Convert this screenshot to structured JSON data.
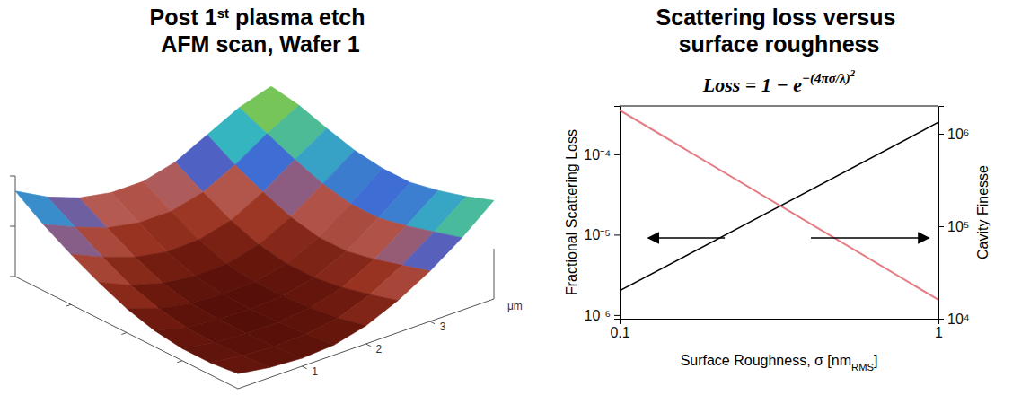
{
  "chart_data": [
    {
      "type": "surface",
      "title": "Post 1st plasma etch AFM scan, Wafer 1",
      "x_label": "μm",
      "x": [
        0,
        0.5,
        1,
        1.5,
        2,
        2.5,
        3,
        3.5,
        4
      ],
      "y": [
        0,
        0.5,
        1,
        1.5,
        2,
        2.5,
        3,
        3.5,
        4
      ],
      "z": [
        [
          0.15,
          0.1,
          0.08,
          0.1,
          0.18,
          0.32,
          0.5,
          0.72,
          0.98
        ],
        [
          0.12,
          0.08,
          0.06,
          0.07,
          0.12,
          0.24,
          0.42,
          0.64,
          0.88
        ],
        [
          0.12,
          0.07,
          0.05,
          0.05,
          0.08,
          0.17,
          0.34,
          0.56,
          0.8
        ],
        [
          0.16,
          0.08,
          0.05,
          0.04,
          0.06,
          0.13,
          0.28,
          0.5,
          0.74
        ],
        [
          0.24,
          0.13,
          0.07,
          0.05,
          0.06,
          0.13,
          0.28,
          0.5,
          0.74
        ],
        [
          0.36,
          0.22,
          0.13,
          0.09,
          0.1,
          0.18,
          0.34,
          0.56,
          0.78
        ],
        [
          0.5,
          0.36,
          0.25,
          0.19,
          0.2,
          0.28,
          0.45,
          0.66,
          0.86
        ],
        [
          0.66,
          0.52,
          0.4,
          0.34,
          0.34,
          0.42,
          0.58,
          0.78,
          0.95
        ],
        [
          0.85,
          0.68,
          0.56,
          0.5,
          0.5,
          0.58,
          0.74,
          0.9,
          1.0
        ]
      ],
      "xlim": [
        0,
        4
      ],
      "xticks": [
        1,
        2,
        3
      ],
      "ylim": [
        0,
        4
      ],
      "yticks": [
        1,
        2,
        3
      ],
      "zlim": [
        0,
        1
      ],
      "zticks": [
        0,
        0.5,
        1
      ],
      "tick_labels": "x"
    },
    {
      "type": "line",
      "title": "Scattering loss versus surface roughness",
      "annotations": [
        {
          "text": "Loss = 1 − e",
          "exponent": "−(4πσ/λ)",
          "power": "2"
        }
      ],
      "x_label": "Surface Roughness, σ [nmRMS]",
      "y_label": "Fractional Scattering Loss",
      "y2_label": "Cavity Finesse",
      "x": [
        0.1,
        1
      ],
      "series": [
        {
          "color": "#000000",
          "values": [
            2e-06,
            0.00025
          ]
        },
        {
          "color": "#e57c84",
          "values": [
            1800000.0,
            16000.0
          ],
          "axis": "y2"
        }
      ],
      "xlim": [
        0.1,
        1
      ],
      "xticks": [
        0.1,
        1
      ],
      "ylim": [
        9e-07,
        0.0004
      ],
      "yticks": [
        {
          "value": 1e-06,
          "label": "10⁻⁶"
        },
        {
          "value": 1e-05,
          "label": "10⁻⁵"
        },
        {
          "value": 0.0001,
          "label": "10⁻⁴"
        }
      ],
      "y2lim": [
        10000.0,
        2000000.0
      ],
      "y2ticks": [
        {
          "value": 10000,
          "label": "10⁴"
        },
        {
          "value": 100000,
          "label": "10⁵"
        },
        {
          "value": 1000000,
          "label": "10⁶"
        }
      ],
      "log": true
    }
  ]
}
